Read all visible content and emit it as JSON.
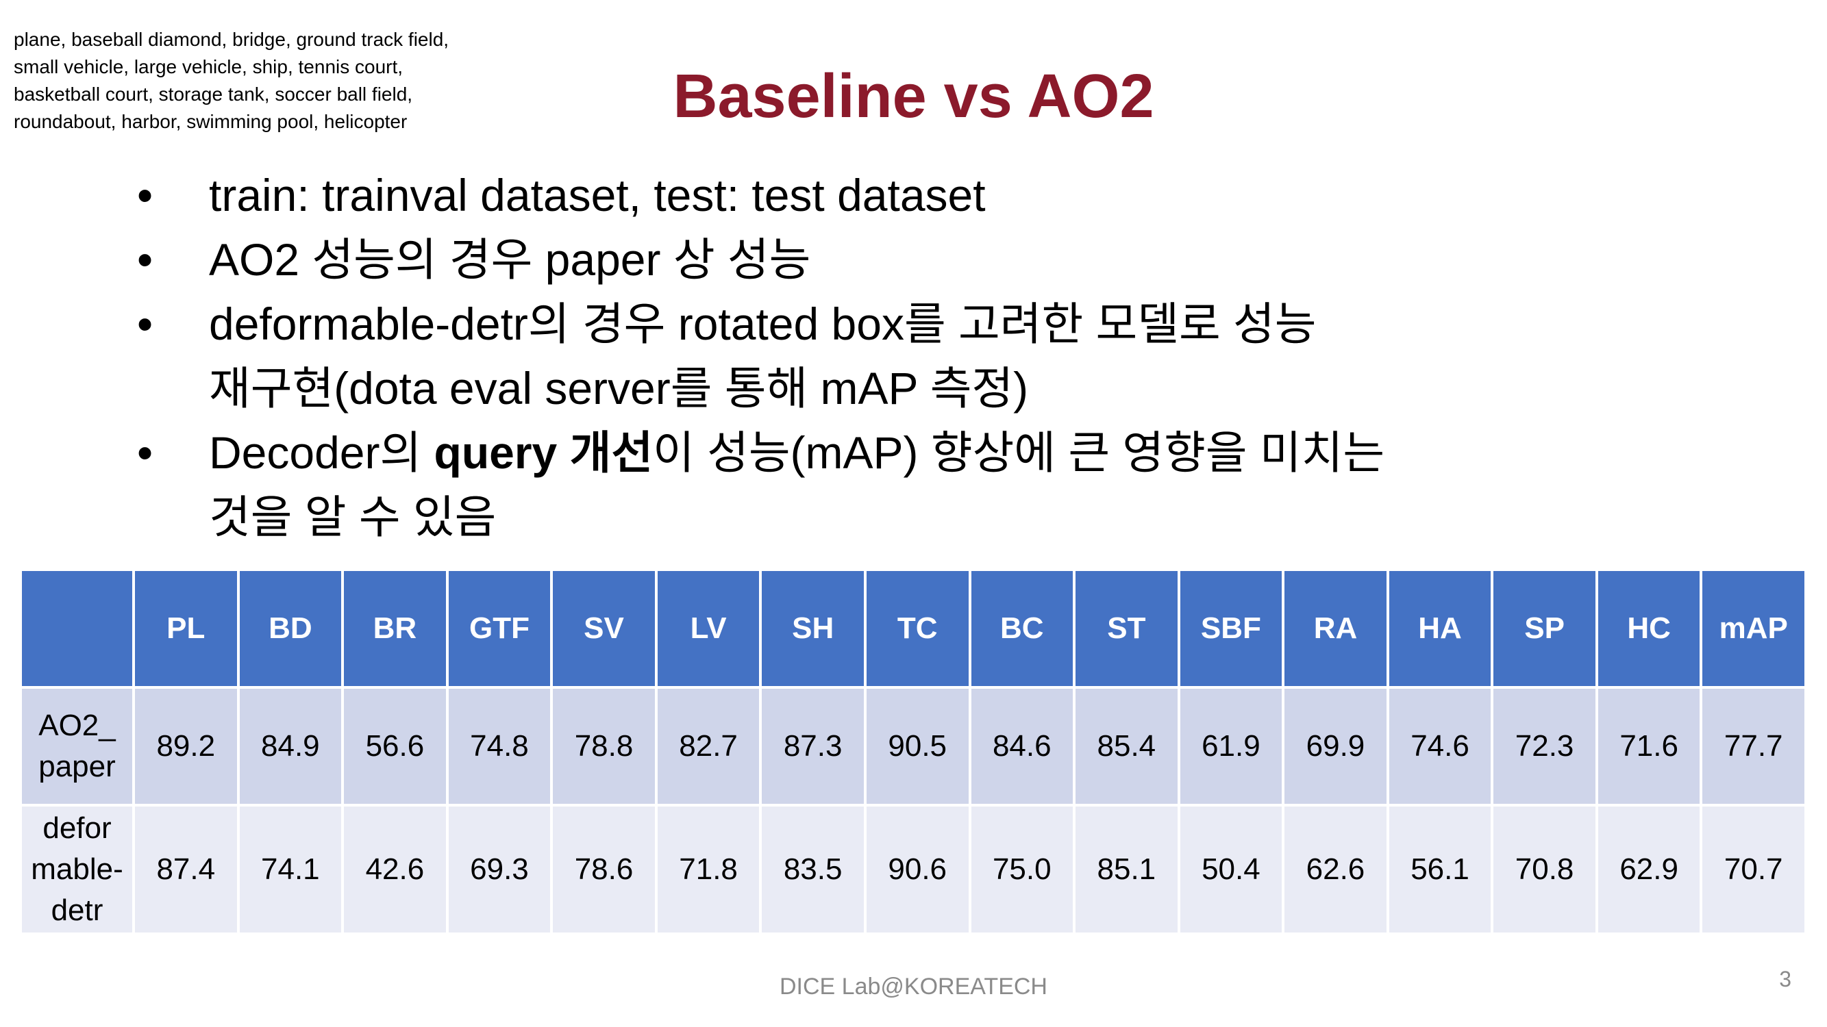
{
  "note": "plane, baseball diamond, bridge, ground track field, small vehicle, large vehicle, ship, tennis court, basketball court, storage tank, soccer ball field, roundabout, harbor, swimming pool, helicopter",
  "title": "Baseline vs AO2",
  "bullets": {
    "b1": "train: trainval dataset, test: test dataset",
    "b2": "AO2 성능의 경우 paper 상 성능",
    "b3_line1": "deformable-detr의 경우 rotated box를 고려한 모델로 성능",
    "b3_line2": "재구현(dota eval server를 통해 mAP 측정)",
    "b4_pre": "Decoder의 ",
    "b4_bold": "query 개선",
    "b4_post": "이 성능(mAP) 향상에 큰 영향을 미치는",
    "b4_line2": "것을 알 수 있음"
  },
  "table": {
    "headers": [
      "",
      "PL",
      "BD",
      "BR",
      "GTF",
      "SV",
      "LV",
      "SH",
      "TC",
      "BC",
      "ST",
      "SBF",
      "RA",
      "HA",
      "SP",
      "HC",
      "mAP"
    ],
    "rows": [
      {
        "label_lines": [
          "AO2_",
          "paper"
        ],
        "values": [
          "89.2",
          "84.9",
          "56.6",
          "74.8",
          "78.8",
          "82.7",
          "87.3",
          "90.5",
          "84.6",
          "85.4",
          "61.9",
          "69.9",
          "74.6",
          "72.3",
          "71.6",
          "77.7"
        ]
      },
      {
        "label_lines": [
          "defor",
          "mable-",
          "detr"
        ],
        "values": [
          "87.4",
          "74.1",
          "42.6",
          "69.3",
          "78.6",
          "71.8",
          "83.5",
          "90.6",
          "75.0",
          "85.1",
          "50.4",
          "62.6",
          "56.1",
          "70.8",
          "62.9",
          "70.7"
        ]
      }
    ]
  },
  "footer": "DICE Lab@KOREATECH",
  "page_number": "3",
  "colors": {
    "title": "#8B1A2B",
    "header_bg": "#4472C4",
    "row_odd_bg": "#CFD5EA",
    "row_even_bg": "#E9EBF5"
  }
}
